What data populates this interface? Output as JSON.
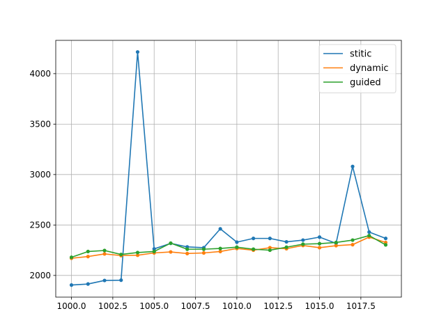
{
  "chart_data": {
    "type": "line",
    "title": "",
    "xlabel": "",
    "ylabel": "",
    "x": [
      1000,
      1001,
      1002,
      1003,
      1004,
      1005,
      1006,
      1007,
      1008,
      1009,
      1010,
      1011,
      1012,
      1013,
      1014,
      1015,
      1016,
      1017,
      1018,
      1019
    ],
    "xlim": [
      999.05,
      1019.95
    ],
    "ylim": [
      1785,
      4330
    ],
    "xticks": [
      1000,
      1002.5,
      1005,
      1007.5,
      1010,
      1012.5,
      1015,
      1017.5
    ],
    "xtick_labels": [
      "1000.0",
      "1002.5",
      "1005.0",
      "1007.5",
      "1010.0",
      "1012.5",
      "1015.0",
      "1017.5"
    ],
    "yticks": [
      2000,
      2500,
      3000,
      3500,
      4000
    ],
    "ytick_labels": [
      "2000",
      "2500",
      "3000",
      "3500",
      "4000"
    ],
    "grid": true,
    "legend_position": "top-right",
    "series": [
      {
        "name": "stitic",
        "color": "#1f77b4",
        "values": [
          1905,
          1915,
          1950,
          1953,
          4215,
          2263,
          2318,
          2283,
          2275,
          2462,
          2330,
          2367,
          2367,
          2333,
          2350,
          2380,
          2318,
          3080,
          2430,
          2367
        ]
      },
      {
        "name": "dynamic",
        "color": "#ff7f0e",
        "values": [
          2170,
          2187,
          2213,
          2197,
          2200,
          2223,
          2233,
          2217,
          2223,
          2237,
          2267,
          2250,
          2275,
          2265,
          2297,
          2275,
          2295,
          2305,
          2380,
          2327
        ]
      },
      {
        "name": "guided",
        "color": "#2ca02c",
        "values": [
          2180,
          2237,
          2247,
          2208,
          2227,
          2237,
          2320,
          2260,
          2260,
          2267,
          2280,
          2260,
          2250,
          2280,
          2310,
          2315,
          2327,
          2350,
          2395,
          2303
        ]
      }
    ]
  }
}
